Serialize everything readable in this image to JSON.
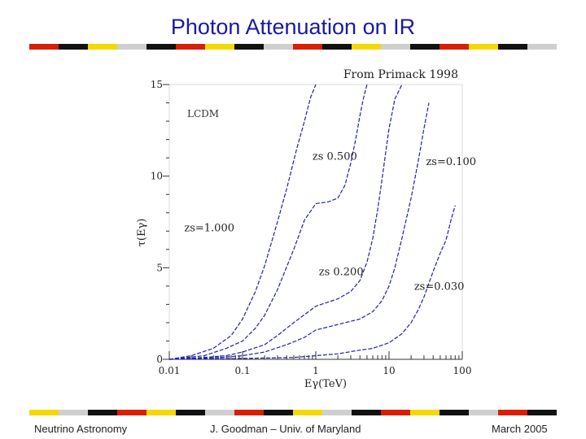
{
  "slide": {
    "title": "Photon Attenuation on IR",
    "footer_left": "Neutrino Astronomy",
    "footer_center": "J. Goodman – Univ. of Maryland",
    "footer_right": "March 2005"
  },
  "colors": {
    "title": "#1a1aa0",
    "curve": "#1f1fb0",
    "stripe_red": "#d81e05",
    "stripe_black": "#111111",
    "stripe_yellow": "#f5d800",
    "stripe_grey": "#cfcfcf"
  },
  "chart_data": {
    "type": "line",
    "source_note": "From Primack 1998",
    "model_label": "LCDM",
    "xlabel": "Eγ(TeV)",
    "ylabel": "τ(Eγ)",
    "xscale": "log",
    "xlim": [
      0.01,
      100
    ],
    "ylim": [
      0,
      15
    ],
    "xticks": [
      0.01,
      0.1,
      1,
      10,
      100
    ],
    "xtick_labels": [
      "0.01",
      "0.1",
      "1",
      "10",
      "100"
    ],
    "yticks": [
      0,
      5,
      10,
      15
    ],
    "ytick_labels": [
      "0",
      "5",
      "10",
      "15"
    ],
    "series": [
      {
        "name": "zs=1.000",
        "label": "zs=1.000",
        "x": [
          0.01,
          0.02,
          0.04,
          0.07,
          0.1,
          0.15,
          0.2,
          0.3,
          0.4,
          0.55,
          0.7,
          0.85,
          1.0
        ],
        "y": [
          0,
          0.2,
          0.6,
          1.3,
          2.2,
          3.7,
          5.1,
          7.5,
          9.3,
          11.5,
          13.0,
          14.3,
          15.2
        ]
      },
      {
        "name": "zs=0.500",
        "label": "zs 0.500",
        "x": [
          0.01,
          0.03,
          0.06,
          0.1,
          0.15,
          0.2,
          0.3,
          0.5,
          0.7,
          1.0,
          1.5,
          2.0,
          2.5,
          3.0,
          3.5,
          4.0,
          4.5,
          5.0
        ],
        "y": [
          0,
          0.2,
          0.6,
          1.0,
          1.7,
          2.4,
          3.8,
          6.0,
          7.6,
          8.5,
          8.6,
          8.8,
          9.5,
          10.7,
          12.0,
          13.3,
          14.3,
          15.2
        ]
      },
      {
        "name": "zs=0.200",
        "label": "zs 0.200",
        "x": [
          0.01,
          0.03,
          0.06,
          0.1,
          0.2,
          0.3,
          0.5,
          1.0,
          2.0,
          3.0,
          4.0,
          5.0,
          6.0,
          7.0,
          8.0,
          9.0,
          10,
          12,
          15
        ],
        "y": [
          0,
          0.1,
          0.2,
          0.4,
          0.8,
          1.3,
          2.0,
          2.9,
          3.3,
          3.7,
          4.3,
          5.3,
          6.6,
          8.2,
          9.8,
          11.3,
          12.6,
          14.2,
          15.2
        ]
      },
      {
        "name": "zs=0.100",
        "label": "zs=0.100",
        "x": [
          0.01,
          0.05,
          0.1,
          0.2,
          0.4,
          0.7,
          1.0,
          2.0,
          4.0,
          6.0,
          8.0,
          10,
          12,
          15,
          20,
          25,
          30,
          35
        ],
        "y": [
          0,
          0.1,
          0.2,
          0.4,
          0.8,
          1.2,
          1.6,
          1.9,
          2.2,
          2.6,
          3.2,
          4.0,
          5.0,
          6.6,
          8.8,
          10.8,
          12.6,
          14.0
        ]
      },
      {
        "name": "zs=0.030",
        "label": "zs=0.030",
        "x": [
          0.01,
          0.1,
          0.5,
          1.0,
          2.0,
          4.0,
          6.0,
          10,
          15,
          20,
          25,
          30,
          40,
          50,
          60,
          70,
          80
        ],
        "y": [
          0,
          0.05,
          0.1,
          0.2,
          0.3,
          0.5,
          0.6,
          0.9,
          1.4,
          2.0,
          2.7,
          3.4,
          4.8,
          5.8,
          6.5,
          7.6,
          8.4
        ]
      }
    ]
  }
}
